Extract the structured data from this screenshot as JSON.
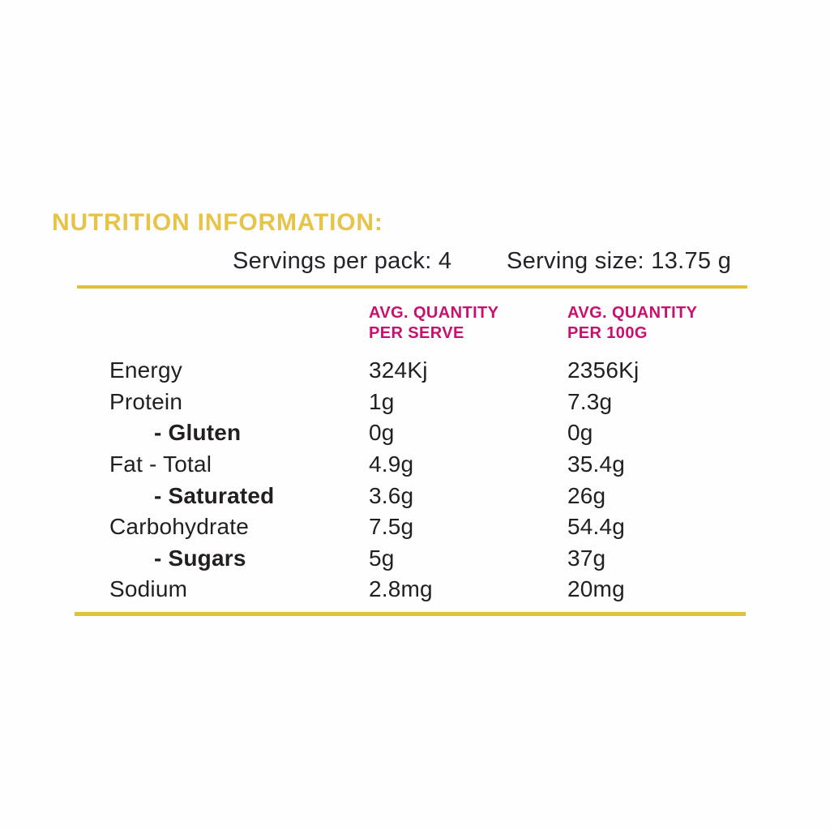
{
  "panel": {
    "title": "NUTRITION INFORMATION:",
    "serving_info": {
      "servings_per_pack": "Servings per pack: 4",
      "serving_size": "Serving size: 13.75 g"
    },
    "columns": {
      "per_serve_line1": "AVG. QUANTITY",
      "per_serve_line2": "PER SERVE",
      "per_100g_line1": "AVG. QUANTITY",
      "per_100g_line2": "PER 100G"
    },
    "rows": [
      {
        "label": "Energy",
        "per_serve": "324Kj",
        "per_100g": "2356Kj"
      },
      {
        "label": "Protein",
        "per_serve": "1g",
        "per_100g": "7.3g"
      },
      {
        "label": "- Gluten",
        "per_serve": "0g",
        "per_100g": "0g"
      },
      {
        "label": "Fat - Total",
        "per_serve": "4.9g",
        "per_100g": "35.4g"
      },
      {
        "label": "- Saturated",
        "per_serve": "3.6g",
        "per_100g": "26g"
      },
      {
        "label": "Carbohydrate",
        "per_serve": "7.5g",
        "per_100g": "54.4g"
      },
      {
        "label": "- Sugars",
        "per_serve": "5g",
        "per_100g": "37g"
      },
      {
        "label": "Sodium",
        "per_serve": "2.8mg",
        "per_100g": "20mg"
      }
    ],
    "colors": {
      "gold_title": "#e6c44a",
      "gold_rule": "#e0c138",
      "pink_header": "#c9106f",
      "body_text": "#231f20"
    }
  }
}
